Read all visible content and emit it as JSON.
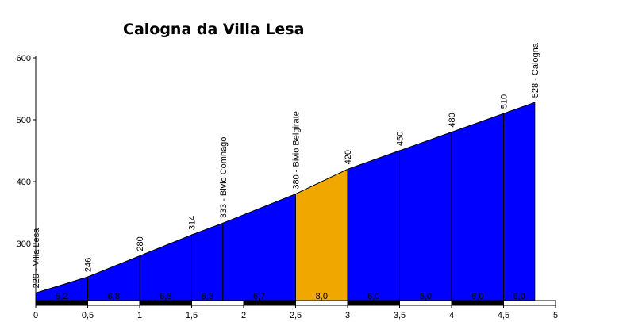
{
  "chart_data": {
    "type": "area",
    "title": "Calogna da Villa Lesa",
    "xlabel": "",
    "ylabel": "",
    "xlim": [
      0,
      5
    ],
    "ylim": [
      200,
      600
    ],
    "x_ticks": [
      "0",
      "0,5",
      "1",
      "1,5",
      "2",
      "2,5",
      "3",
      "3,5",
      "4",
      "4,5",
      "5"
    ],
    "y_ticks": [
      "300",
      "400",
      "500",
      "600"
    ],
    "profile": [
      {
        "x": 0,
        "y": 220,
        "label": "220 - Villa Lesa"
      },
      {
        "x": 0.5,
        "y": 246,
        "label": "246"
      },
      {
        "x": 1.0,
        "y": 280,
        "label": "280"
      },
      {
        "x": 1.5,
        "y": 314,
        "label": "314"
      },
      {
        "x": 1.8,
        "y": 333,
        "label": "333 - Bivio Comnago"
      },
      {
        "x": 2.5,
        "y": 380,
        "label": "380 - Bivio Belgirate"
      },
      {
        "x": 3.0,
        "y": 420,
        "label": "420"
      },
      {
        "x": 3.5,
        "y": 450,
        "label": "450"
      },
      {
        "x": 4.0,
        "y": 480,
        "label": "480"
      },
      {
        "x": 4.5,
        "y": 510,
        "label": "510"
      },
      {
        "x": 4.8,
        "y": 528,
        "label": "528 - Calogna"
      }
    ],
    "segments": [
      {
        "from": 0,
        "to": 0.5,
        "gradient": "5,2",
        "color": "#0000ff"
      },
      {
        "from": 0.5,
        "to": 1.0,
        "gradient": "6,8",
        "color": "#0000ff"
      },
      {
        "from": 1.0,
        "to": 1.5,
        "gradient": "6,8",
        "color": "#0000ff"
      },
      {
        "from": 1.5,
        "to": 1.8,
        "gradient": "6,3",
        "color": "#0000ff"
      },
      {
        "from": 1.8,
        "to": 2.5,
        "gradient": "6,7",
        "color": "#0000ff"
      },
      {
        "from": 2.5,
        "to": 3.0,
        "gradient": "8,0",
        "color": "#f0a800"
      },
      {
        "from": 3.0,
        "to": 3.5,
        "gradient": "6,0",
        "color": "#0000ff"
      },
      {
        "from": 3.5,
        "to": 4.0,
        "gradient": "6,0",
        "color": "#0000ff"
      },
      {
        "from": 4.0,
        "to": 4.5,
        "gradient": "6,0",
        "color": "#0000ff"
      },
      {
        "from": 4.5,
        "to": 4.8,
        "gradient": "6,0",
        "color": "#0000ff"
      }
    ],
    "grid": false,
    "legend": "none"
  }
}
